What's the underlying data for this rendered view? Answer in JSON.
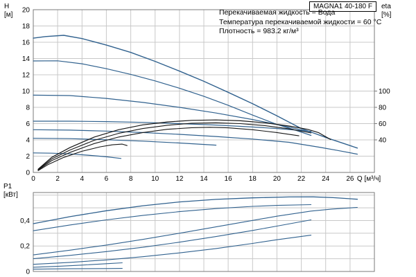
{
  "style": {
    "grid_color": "#c8c8c8",
    "border_color": "#7a7a7a",
    "text_color": "#000000",
    "curve_blue": "#30618e",
    "curve_black": "#161616"
  },
  "chart_data": [
    {
      "type": "line",
      "title": "MAGNA1 40-180 F",
      "annotations": [
        "Перекачиваемая жидкость = Вода",
        "Температура перекачиваемой жидкости = 60 °C",
        "Плотность = 983.2 кг/м³"
      ],
      "xlabel": "Q [м³/ч]",
      "ylabel_lines": [
        "H",
        "[м]"
      ],
      "y2label_lines": [
        "eta",
        "[%]"
      ],
      "xlim": [
        0,
        28
      ],
      "ylim": [
        0,
        20
      ],
      "x_grid_step": 2,
      "y_grid_step": 2,
      "x_tick_labels": [
        0,
        2,
        4,
        6,
        8,
        10,
        12,
        14,
        16,
        18,
        20,
        22,
        24,
        26
      ],
      "y_tick_labels": [
        0,
        2,
        4,
        6,
        8,
        10,
        12,
        14,
        16,
        18,
        20
      ],
      "eta_axis": {
        "ticks": [
          40,
          60,
          80,
          100
        ],
        "H_per_percent": 0.1
      },
      "grid": true,
      "legend": "none",
      "series": [
        {
          "name": "pump-curve-max",
          "color": "#30618e",
          "width": 1.4,
          "points": [
            [
              0,
              16.5
            ],
            [
              1,
              16.7
            ],
            [
              2.5,
              16.85
            ],
            [
              4,
              16.45
            ],
            [
              6,
              15.65
            ],
            [
              8,
              14.75
            ],
            [
              10,
              13.65
            ],
            [
              12,
              12.45
            ],
            [
              14,
              11.2
            ],
            [
              16,
              9.85
            ],
            [
              18,
              8.45
            ],
            [
              20,
              6.95
            ],
            [
              22,
              5.4
            ],
            [
              23,
              4.85
            ],
            [
              24.2,
              4.2
            ],
            [
              25.4,
              3.6
            ],
            [
              26.6,
              3.0
            ]
          ]
        },
        {
          "name": "pump-curve-2",
          "color": "#30618e",
          "width": 1.2,
          "points": [
            [
              0,
              13.7
            ],
            [
              2,
              13.72
            ],
            [
              4,
              13.35
            ],
            [
              6,
              12.75
            ],
            [
              8,
              12.05
            ],
            [
              10,
              11.25
            ],
            [
              12,
              10.35
            ],
            [
              14,
              9.35
            ],
            [
              16,
              8.25
            ],
            [
              18,
              7.05
            ],
            [
              20,
              5.9
            ],
            [
              21.5,
              5.2
            ],
            [
              22.8,
              4.55
            ]
          ]
        },
        {
          "name": "pump-curve-3",
          "color": "#30618e",
          "width": 1.2,
          "points": [
            [
              0,
              9.5
            ],
            [
              3,
              9.45
            ],
            [
              6,
              9.1
            ],
            [
              9,
              8.6
            ],
            [
              12,
              8.0
            ],
            [
              15,
              7.3
            ],
            [
              18,
              6.5
            ],
            [
              20,
              5.9
            ],
            [
              21.5,
              5.4
            ],
            [
              22.8,
              4.95
            ]
          ]
        },
        {
          "name": "pump-curve-4",
          "color": "#30618e",
          "width": 1.2,
          "points": [
            [
              0,
              6.3
            ],
            [
              3,
              6.3
            ],
            [
              6,
              6.25
            ],
            [
              9,
              6.15
            ],
            [
              12,
              6.0
            ],
            [
              15,
              5.82
            ],
            [
              18,
              5.58
            ],
            [
              20,
              5.4
            ],
            [
              22.8,
              5.05
            ]
          ]
        },
        {
          "name": "pump-curve-5",
          "color": "#30618e",
          "width": 1.2,
          "points": [
            [
              0,
              5.25
            ],
            [
              3,
              5.2
            ],
            [
              6,
              5.08
            ],
            [
              9,
              4.9
            ],
            [
              12,
              4.68
            ],
            [
              15,
              4.42
            ],
            [
              18,
              4.1
            ],
            [
              21,
              3.7
            ],
            [
              23.5,
              3.1
            ],
            [
              25,
              2.7
            ],
            [
              26.6,
              2.25
            ]
          ]
        },
        {
          "name": "pump-curve-6",
          "color": "#30618e",
          "width": 1.2,
          "points": [
            [
              0,
              4.2
            ],
            [
              3,
              4.15
            ],
            [
              6,
              4.02
            ],
            [
              9,
              3.85
            ],
            [
              12,
              3.62
            ],
            [
              15,
              3.35
            ]
          ]
        },
        {
          "name": "pump-curve-min",
          "color": "#30618e",
          "width": 1.2,
          "points": [
            [
              0,
              2.4
            ],
            [
              1.5,
              2.37
            ],
            [
              3,
              2.28
            ],
            [
              4.5,
              2.12
            ],
            [
              6,
              1.92
            ],
            [
              7.2,
              1.72
            ]
          ]
        },
        {
          "name": "eta-curve-1",
          "color": "#161616",
          "width": 1.2,
          "points": [
            [
              0.4,
              0.4
            ],
            [
              1.5,
              1.85
            ],
            [
              3,
              3.05
            ],
            [
              5,
              4.35
            ],
            [
              7,
              5.25
            ],
            [
              9,
              5.85
            ],
            [
              11,
              6.2
            ],
            [
              13,
              6.4
            ],
            [
              15,
              6.45
            ],
            [
              17,
              6.35
            ],
            [
              19,
              6.1
            ],
            [
              21,
              5.7
            ],
            [
              22.5,
              5.3
            ],
            [
              23.4,
              4.9
            ],
            [
              24.4,
              4.05
            ]
          ]
        },
        {
          "name": "eta-curve-2",
          "color": "#161616",
          "width": 1.1,
          "points": [
            [
              0.4,
              0.35
            ],
            [
              1.5,
              1.65
            ],
            [
              3,
              2.75
            ],
            [
              5,
              3.95
            ],
            [
              7,
              4.8
            ],
            [
              9,
              5.4
            ],
            [
              11,
              5.8
            ],
            [
              13,
              6.05
            ],
            [
              15,
              6.1
            ],
            [
              17,
              6.0
            ],
            [
              19,
              5.75
            ],
            [
              21,
              5.35
            ],
            [
              22.8,
              4.85
            ]
          ]
        },
        {
          "name": "eta-curve-3",
          "color": "#161616",
          "width": 1.1,
          "points": [
            [
              0.4,
              0.3
            ],
            [
              1.5,
              1.45
            ],
            [
              3,
              2.45
            ],
            [
              5,
              3.55
            ],
            [
              7,
              4.35
            ],
            [
              9,
              4.9
            ],
            [
              11,
              5.3
            ],
            [
              13,
              5.5
            ],
            [
              14.5,
              5.55
            ],
            [
              16,
              5.48
            ],
            [
              18,
              5.25
            ],
            [
              20,
              4.9
            ],
            [
              21.8,
              4.5
            ]
          ]
        },
        {
          "name": "eta-curve-min",
          "color": "#161616",
          "width": 1.1,
          "points": [
            [
              0.4,
              0.22
            ],
            [
              1.2,
              0.95
            ],
            [
              2.5,
              1.85
            ],
            [
              4,
              2.6
            ],
            [
              5.5,
              3.15
            ],
            [
              6.5,
              3.4
            ],
            [
              7.3,
              3.48
            ],
            [
              7.7,
              3.3
            ]
          ]
        }
      ]
    },
    {
      "type": "line",
      "title": "",
      "xlabel": "",
      "ylabel_lines": [
        "P1",
        "[кВт]"
      ],
      "xlim": [
        0,
        28
      ],
      "ylim": [
        0,
        0.62
      ],
      "x_grid_step": 2,
      "y_grid_step": 0.1,
      "x_tick_labels": [],
      "y_tick_labels": [
        0,
        0.2,
        0.4
      ],
      "grid": true,
      "legend": "none",
      "series": [
        {
          "name": "power-curve-max",
          "color": "#30618e",
          "width": 1.3,
          "points": [
            [
              0,
              0.375
            ],
            [
              3,
              0.43
            ],
            [
              6,
              0.477
            ],
            [
              9,
              0.516
            ],
            [
              12,
              0.546
            ],
            [
              15,
              0.566
            ],
            [
              18,
              0.578
            ],
            [
              21,
              0.585
            ],
            [
              23,
              0.586
            ],
            [
              24.6,
              0.58
            ],
            [
              26.6,
              0.567
            ]
          ]
        },
        {
          "name": "power-curve-2",
          "color": "#30618e",
          "width": 1.1,
          "points": [
            [
              0,
              0.32
            ],
            [
              3,
              0.365
            ],
            [
              6,
              0.405
            ],
            [
              9,
              0.44
            ],
            [
              12,
              0.47
            ],
            [
              15,
              0.494
            ],
            [
              18,
              0.511
            ],
            [
              20,
              0.519
            ],
            [
              22.8,
              0.525
            ]
          ]
        },
        {
          "name": "power-curve-3",
          "color": "#30618e",
          "width": 1.1,
          "points": [
            [
              0,
              0.13
            ],
            [
              3,
              0.167
            ],
            [
              6,
              0.207
            ],
            [
              9,
              0.252
            ],
            [
              12,
              0.3
            ],
            [
              15,
              0.35
            ],
            [
              18,
              0.401
            ],
            [
              20,
              0.434
            ],
            [
              22.8,
              0.474
            ],
            [
              24.5,
              0.49
            ],
            [
              26.6,
              0.503
            ]
          ]
        },
        {
          "name": "power-curve-4",
          "color": "#30618e",
          "width": 1.1,
          "points": [
            [
              0,
              0.1
            ],
            [
              3,
              0.126
            ],
            [
              6,
              0.156
            ],
            [
              9,
              0.19
            ],
            [
              12,
              0.23
            ],
            [
              15,
              0.274
            ],
            [
              18,
              0.322
            ],
            [
              20,
              0.356
            ],
            [
              22.8,
              0.405
            ]
          ]
        },
        {
          "name": "power-curve-5",
          "color": "#30618e",
          "width": 1.1,
          "points": [
            [
              0,
              0.056
            ],
            [
              3,
              0.071
            ],
            [
              6,
              0.091
            ],
            [
              9,
              0.116
            ],
            [
              12,
              0.146
            ],
            [
              15,
              0.18
            ],
            [
              18,
              0.22
            ],
            [
              20,
              0.249
            ],
            [
              22.8,
              0.285
            ]
          ]
        },
        {
          "name": "power-curve-min",
          "color": "#30618e",
          "width": 1.1,
          "points": [
            [
              0,
              0.033
            ],
            [
              2,
              0.04
            ],
            [
              4,
              0.05
            ],
            [
              6,
              0.061
            ],
            [
              7.3,
              0.068
            ]
          ]
        },
        {
          "name": "power-curve-low",
          "color": "#30618e",
          "width": 1.1,
          "points": [
            [
              0,
              0.018
            ],
            [
              3,
              0.021
            ],
            [
              6,
              0.023
            ],
            [
              7.3,
              0.024
            ]
          ]
        }
      ]
    }
  ]
}
